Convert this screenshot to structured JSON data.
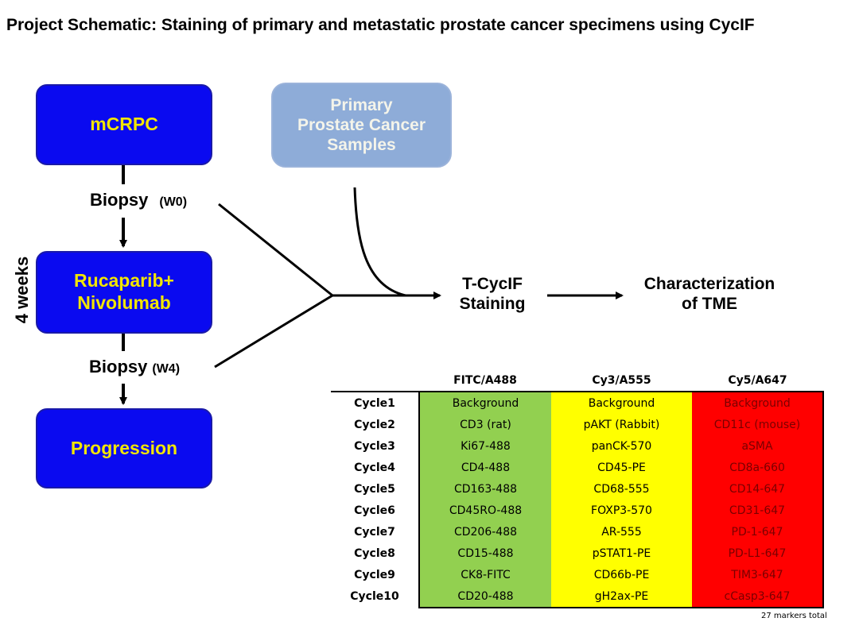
{
  "title": "Project Schematic: Staining of primary and metastatic prostate cancer specimens using CycIF",
  "boxes": {
    "mcrpc": "mCRPC",
    "treatment_line1": "Rucaparib+",
    "treatment_line2": "Nivolumab",
    "progression": "Progression",
    "primary_line1": "Primary",
    "primary_line2": "Prostate Cancer",
    "primary_line3": "Samples"
  },
  "biopsy_w0": {
    "label": "Biopsy",
    "week": "(W0)"
  },
  "biopsy_w4": {
    "label": "Biopsy",
    "week": "(W4)"
  },
  "duration_label": "4 weeks",
  "staining": {
    "line1": "T-CycIF",
    "line2": "Staining"
  },
  "outcome": {
    "line1": "Characterization",
    "line2": "of TME"
  },
  "colors": {
    "blue_box": "#0a0af0",
    "blue_box_text": "#f2e600",
    "primary_box": "#8eacd8",
    "fitc_column": "#92d050",
    "cy3_column": "#ffff00",
    "cy5_column": "#ff0000"
  },
  "table": {
    "headers": [
      "",
      "FITC/A488",
      "Cy3/A555",
      "Cy5/A647"
    ],
    "rows": [
      [
        "Cycle1",
        "Background",
        "Background",
        "Background"
      ],
      [
        "Cycle2",
        "CD3 (rat)",
        "pAKT (Rabbit)",
        "CD11c (mouse)"
      ],
      [
        "Cycle3",
        "Ki67-488",
        "panCK-570",
        "aSMA"
      ],
      [
        "Cycle4",
        "CD4-488",
        "CD45-PE",
        "CD8a-660"
      ],
      [
        "Cycle5",
        "CD163-488",
        "CD68-555",
        "CD14-647"
      ],
      [
        "Cycle6",
        "CD45RO-488",
        "FOXP3-570",
        "CD31-647"
      ],
      [
        "Cycle7",
        "CD206-488",
        "AR-555",
        "PD-1-647"
      ],
      [
        "Cycle8",
        "CD15-488",
        "pSTAT1-PE",
        "PD-L1-647"
      ],
      [
        "Cycle9",
        "CK8-FITC",
        "CD66b-PE",
        "TIM3-647"
      ],
      [
        "Cycle10",
        "CD20-488",
        "gH2ax-PE",
        "cCasp3-647"
      ]
    ]
  },
  "footnote": "27 markers total"
}
